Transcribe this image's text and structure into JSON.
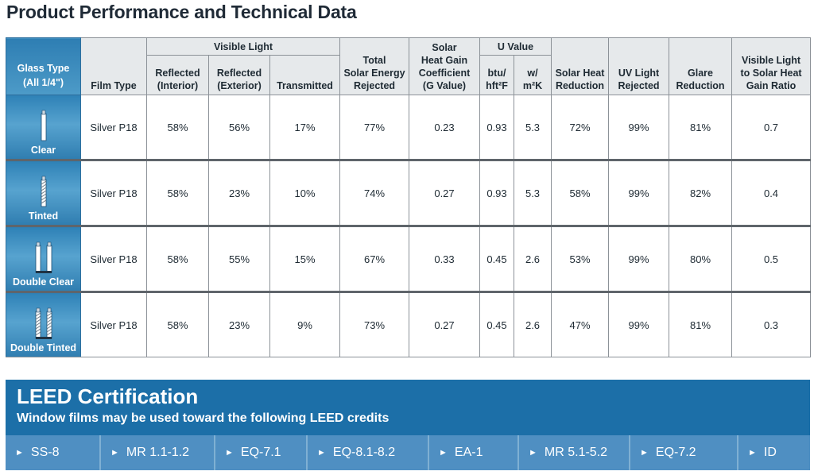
{
  "page_title": "Product Performance and Technical Data",
  "table": {
    "glass_type_header": [
      "Glass Type",
      "(All 1/4\")"
    ],
    "film_type_header": "Film Type",
    "visible_light_header": "Visible Light",
    "reflected_interior_header": [
      "Reflected",
      "(Interior)"
    ],
    "reflected_exterior_header": [
      "Reflected",
      "(Exterior)"
    ],
    "transmitted_header": "Transmitted",
    "total_solar_header": [
      "Total",
      "Solar Energy",
      "Rejected"
    ],
    "shgc_header": [
      "Solar",
      "Heat Gain",
      "Coefficient",
      "(G Value)"
    ],
    "u_value_header": "U Value",
    "u_btu_header": [
      "btu/",
      "hft²F"
    ],
    "u_w_header": [
      "w/",
      "m²K"
    ],
    "solar_heat_reduction_header": [
      "Solar Heat",
      "Reduction"
    ],
    "uv_header": [
      "UV Light",
      "Rejected"
    ],
    "glare_header": [
      "Glare",
      "Reduction"
    ],
    "vlsh_header": [
      "Visible Light",
      "to Solar Heat",
      "Gain Ratio"
    ],
    "rows": [
      {
        "glass": "Clear",
        "icon": "single-clear",
        "film": "Silver P18",
        "refl_int": "58%",
        "refl_ext": "56%",
        "trans": "17%",
        "tser": "77%",
        "shgc": "0.23",
        "u_btu": "0.93",
        "u_w": "5.3",
        "shr": "72%",
        "uv": "99%",
        "glare": "81%",
        "ratio": "0.7"
      },
      {
        "glass": "Tinted",
        "icon": "single-tinted",
        "film": "Silver P18",
        "refl_int": "58%",
        "refl_ext": "23%",
        "trans": "10%",
        "tser": "74%",
        "shgc": "0.27",
        "u_btu": "0.93",
        "u_w": "5.3",
        "shr": "58%",
        "uv": "99%",
        "glare": "82%",
        "ratio": "0.4"
      },
      {
        "glass": "Double Clear",
        "icon": "double-clear",
        "film": "Silver P18",
        "refl_int": "58%",
        "refl_ext": "55%",
        "trans": "15%",
        "tser": "67%",
        "shgc": "0.33",
        "u_btu": "0.45",
        "u_w": "2.6",
        "shr": "53%",
        "uv": "99%",
        "glare": "80%",
        "ratio": "0.5"
      },
      {
        "glass": "Double Tinted",
        "icon": "double-tinted",
        "film": "Silver P18",
        "refl_int": "58%",
        "refl_ext": "23%",
        "trans": "9%",
        "tser": "73%",
        "shgc": "0.27",
        "u_btu": "0.45",
        "u_w": "2.6",
        "shr": "47%",
        "uv": "99%",
        "glare": "81%",
        "ratio": "0.3"
      }
    ]
  },
  "leed": {
    "title": "LEED Certification",
    "subtitle": "Window films may be used toward the following LEED credits",
    "arrow": "►",
    "credits": [
      "SS-8",
      "MR 1.1-1.2",
      "EQ-7.1",
      "EQ-8.1-8.2",
      "EA-1",
      "MR 5.1-5.2",
      "EQ-7.2",
      "ID"
    ]
  }
}
